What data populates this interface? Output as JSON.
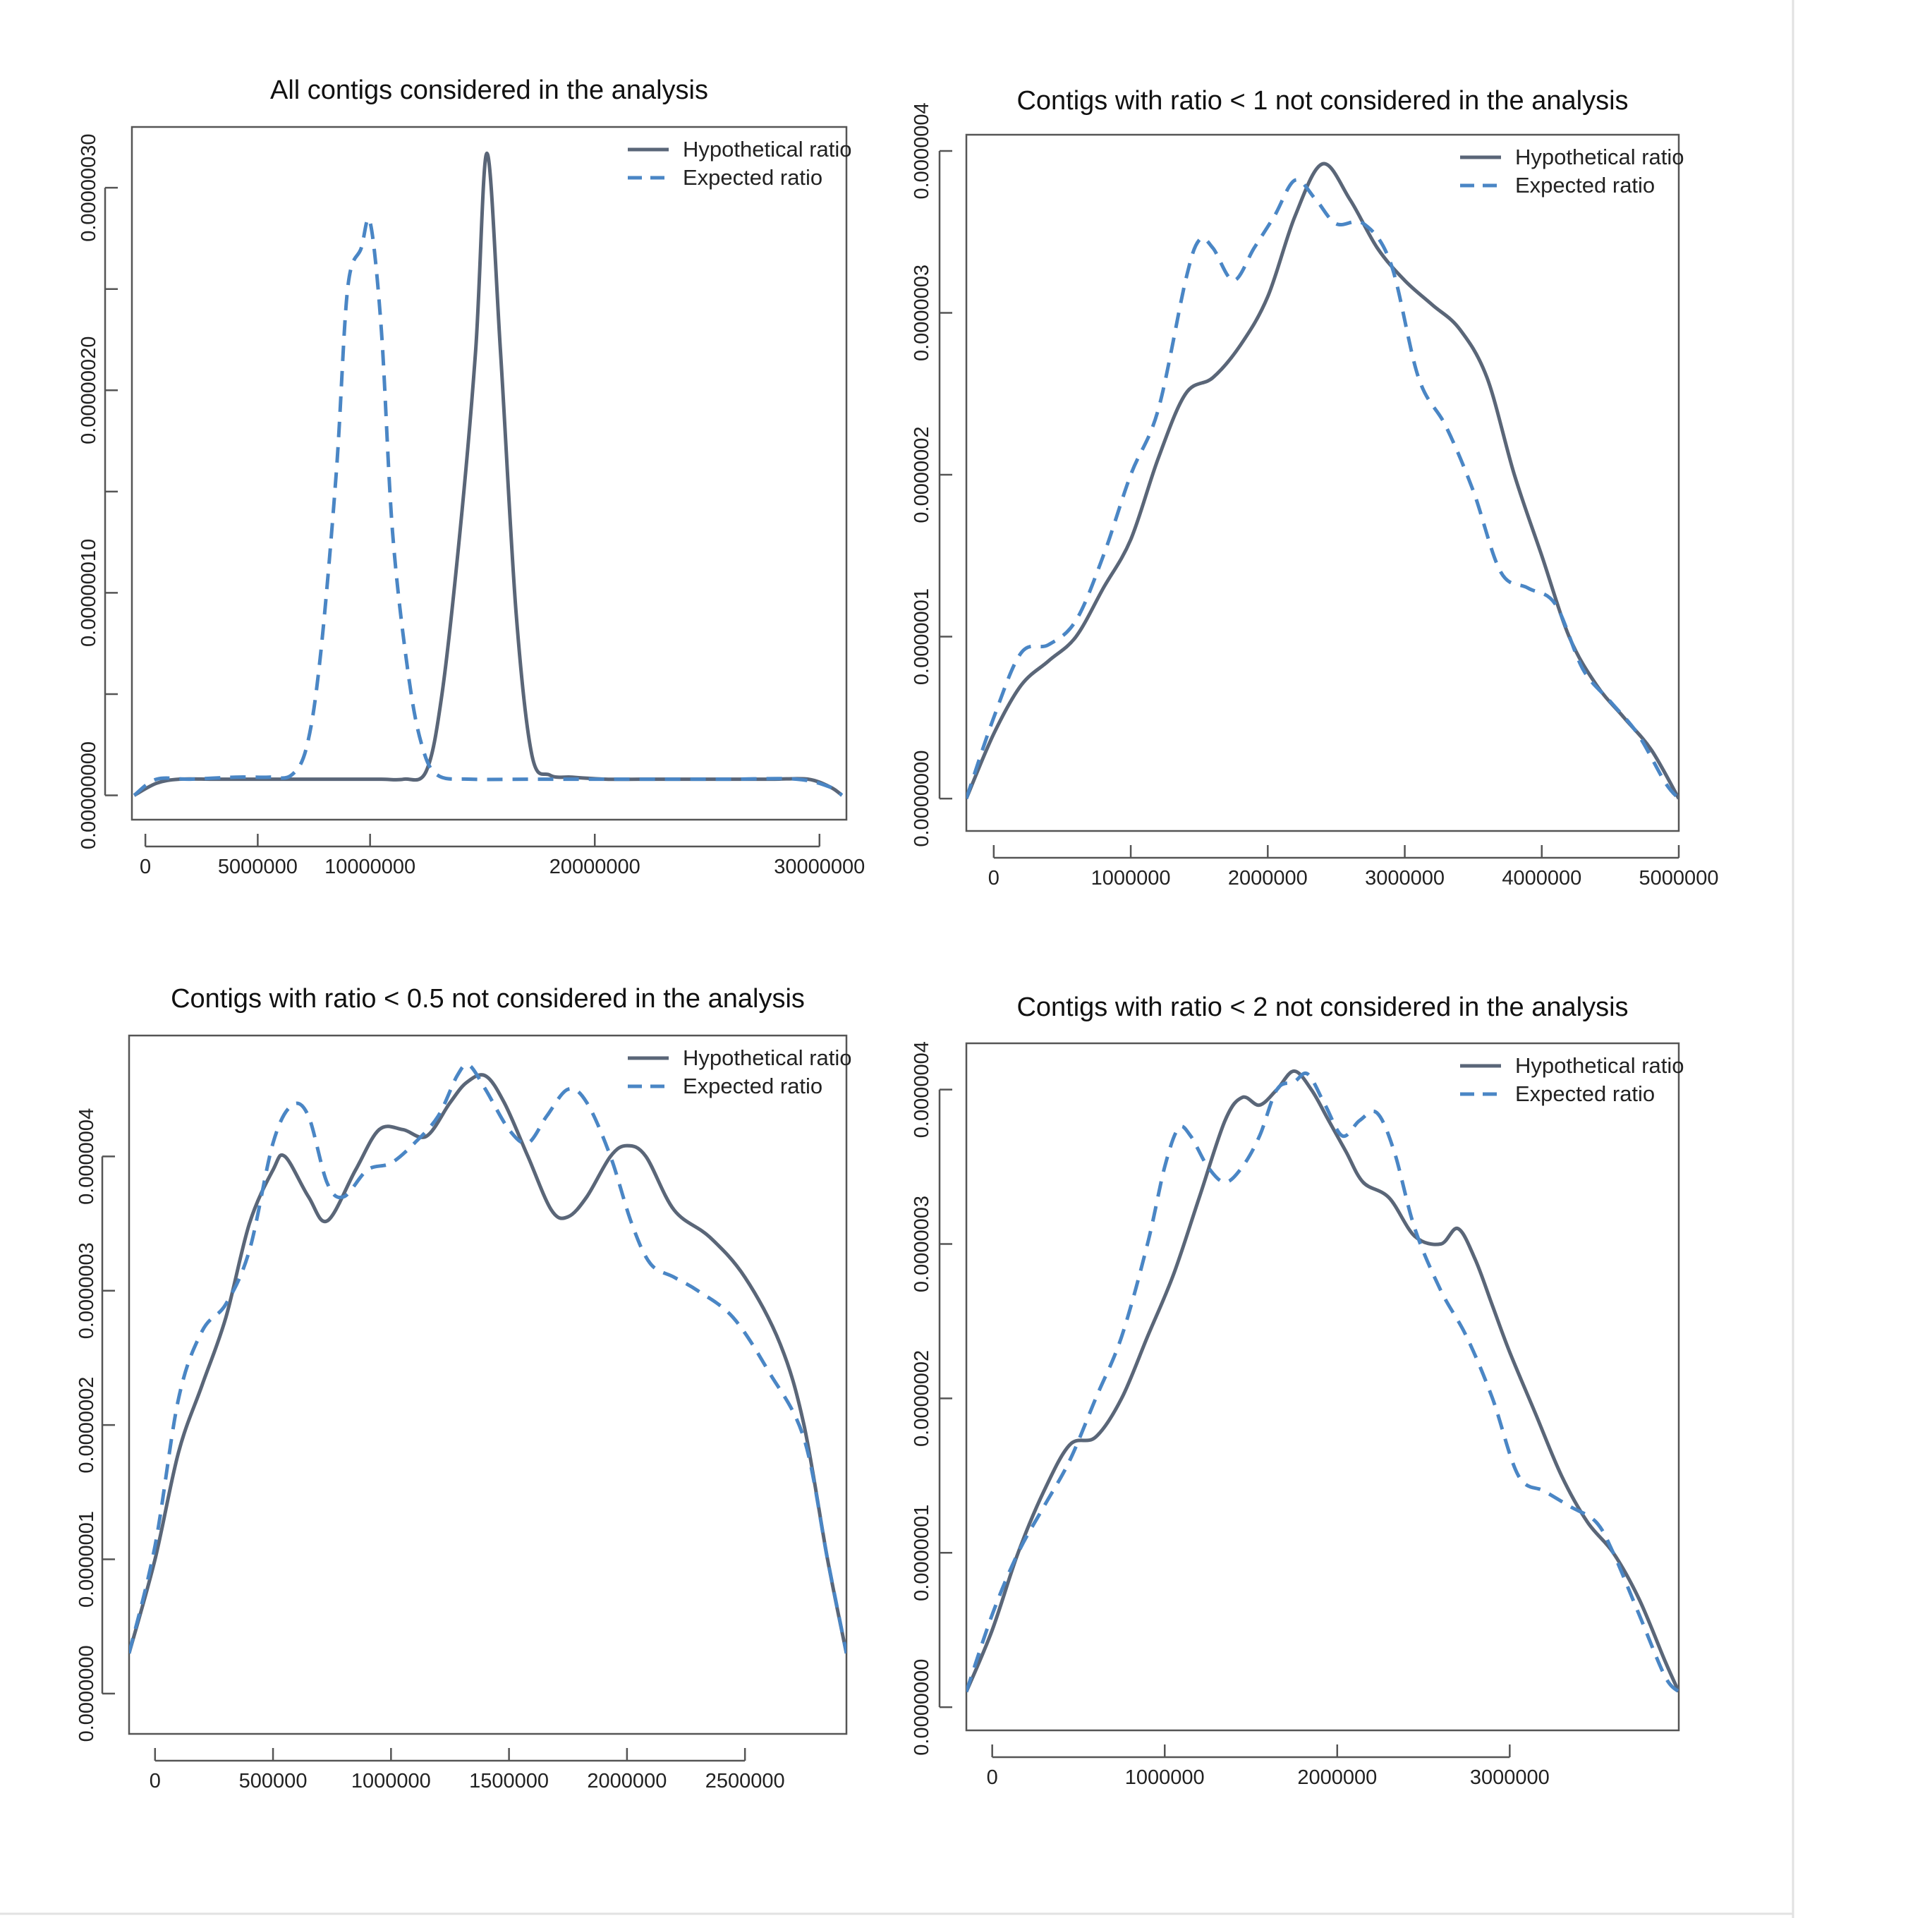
{
  "colors": {
    "hypothetical": "#5a6678",
    "expected": "#4a86c5"
  },
  "chart_data": [
    {
      "type": "line",
      "title": "All contigs considered in the analysis",
      "xlabel": "",
      "ylabel": "",
      "xlim": [
        -600000,
        31200000
      ],
      "ylim": [
        -1.2e-08,
        3.3e-07
      ],
      "x_ticks": [
        0,
        5000000,
        10000000,
        20000000,
        30000000
      ],
      "x_tick_labels": [
        "0",
        "5000000",
        "10000000",
        "20000000",
        "30000000"
      ],
      "y_ticks": [
        0,
        5e-08,
        1e-07,
        1.5e-07,
        2e-07,
        2.5e-07,
        3e-07
      ],
      "y_tick_labels": [
        "0.00000000",
        "",
        "0.00000010",
        "",
        "0.00000020",
        "",
        "0.00000030"
      ],
      "legend": "top-right",
      "series": [
        {
          "name": "Hypothetical ratio",
          "style": "solid",
          "x": [
            -500000,
            500000,
            1500000,
            3000000,
            4500000,
            6000000,
            7500000,
            9000000,
            10500000,
            11500000,
            12500000,
            13200000,
            14000000,
            14700000,
            15200000,
            15800000,
            16500000,
            17200000,
            18000000,
            19000000,
            20500000,
            22000000,
            23500000,
            25000000,
            26500000,
            28000000,
            29500000,
            30500000,
            31000000
          ],
          "y": [
            0.0,
            6e-09,
            8e-09,
            8e-09,
            8e-09,
            8e-09,
            8e-09,
            8e-09,
            8e-09,
            8e-09,
            1.2e-08,
            5e-08,
            1.3e-07,
            2.2e-07,
            3.17e-07,
            2.2e-07,
            9e-08,
            2e-08,
            1e-08,
            9e-09,
            8e-09,
            8e-09,
            8e-09,
            8e-09,
            8e-09,
            8e-09,
            8e-09,
            4e-09,
            0.0
          ]
        },
        {
          "name": "Expected ratio",
          "style": "dashed",
          "x": [
            -500000,
            500000,
            2000000,
            4000000,
            5500000,
            6500000,
            7200000,
            7800000,
            8500000,
            9000000,
            9600000,
            10000000,
            10500000,
            11000000,
            11700000,
            12300000,
            13000000,
            14500000,
            17000000,
            20000000,
            23000000,
            26000000,
            29000000,
            30500000,
            31000000
          ],
          "y": [
            0.0,
            8e-09,
            8e-09,
            9e-09,
            9e-09,
            1e-08,
            2.5e-08,
            7e-08,
            1.6e-07,
            2.5e-07,
            2.7e-07,
            2.83e-07,
            2.3e-07,
            1.3e-07,
            6e-08,
            2.5e-08,
            1e-08,
            8e-09,
            8e-09,
            8e-09,
            8e-09,
            8e-09,
            8e-09,
            4e-09,
            0.0
          ]
        }
      ]
    },
    {
      "type": "line",
      "title": "Contigs with ratio < 1 not considered in the analysis",
      "xlabel": "",
      "ylabel": "",
      "xlim": [
        -200000,
        5000000
      ],
      "ylim": [
        -2e-08,
        4.1e-07
      ],
      "x_ticks": [
        0,
        1000000,
        2000000,
        3000000,
        4000000,
        5000000
      ],
      "x_tick_labels": [
        "0",
        "1000000",
        "2000000",
        "3000000",
        "4000000",
        "5000000"
      ],
      "y_ticks": [
        0,
        1e-07,
        2e-07,
        3e-07,
        4e-07
      ],
      "y_tick_labels": [
        "0.0000000",
        "0.0000001",
        "0.0000002",
        "0.0000003",
        "0.0000004"
      ],
      "legend": "top-right",
      "series": [
        {
          "name": "Hypothetical ratio",
          "style": "solid",
          "x": [
            -200000,
            0,
            200000,
            400000,
            600000,
            800000,
            1000000,
            1200000,
            1400000,
            1600000,
            1800000,
            2000000,
            2200000,
            2400000,
            2600000,
            2800000,
            3000000,
            3200000,
            3400000,
            3600000,
            3800000,
            4000000,
            4200000,
            4400000,
            4600000,
            4800000,
            5000000
          ],
          "y": [
            0.0,
            4e-08,
            7e-08,
            8.5e-08,
            1e-07,
            1.3e-07,
            1.6e-07,
            2.1e-07,
            2.5e-07,
            2.6e-07,
            2.8e-07,
            3.1e-07,
            3.6e-07,
            3.92e-07,
            3.7e-07,
            3.4e-07,
            3.2e-07,
            3.05e-07,
            2.9e-07,
            2.6e-07,
            2e-07,
            1.5e-07,
            1e-07,
            7e-08,
            5e-08,
            3e-08,
            0.0
          ]
        },
        {
          "name": "Expected ratio",
          "style": "dashed",
          "x": [
            -200000,
            0,
            200000,
            400000,
            600000,
            800000,
            1000000,
            1200000,
            1400000,
            1500000,
            1600000,
            1750000,
            1900000,
            2050000,
            2200000,
            2350000,
            2500000,
            2700000,
            2900000,
            3100000,
            3300000,
            3500000,
            3700000,
            3900000,
            4100000,
            4300000,
            4500000,
            4700000,
            4900000,
            5000000
          ],
          "y": [
            0.0,
            5e-08,
            9e-08,
            9.5e-08,
            1.1e-07,
            1.5e-07,
            2e-07,
            2.4e-07,
            3.2e-07,
            3.45e-07,
            3.4e-07,
            3.2e-07,
            3.4e-07,
            3.6e-07,
            3.82e-07,
            3.7e-07,
            3.55e-07,
            3.55e-07,
            3.3e-07,
            2.6e-07,
            2.3e-07,
            1.9e-07,
            1.4e-07,
            1.3e-07,
            1.2e-07,
            8e-08,
            6e-08,
            4e-08,
            1e-08,
            0.0
          ]
        }
      ]
    },
    {
      "type": "line",
      "title": "Contigs with ratio < 0.5 not considered in the analysis",
      "xlabel": "",
      "ylabel": "",
      "xlim": [
        -110000,
        2930000
      ],
      "ylim": [
        -3e-08,
        4.9e-07
      ],
      "x_ticks": [
        0,
        500000,
        1000000,
        1500000,
        2000000,
        2500000
      ],
      "x_tick_labels": [
        "0",
        "500000",
        "1000000",
        "1500000",
        "2000000",
        "2500000"
      ],
      "y_ticks": [
        0,
        1e-07,
        2e-07,
        3e-07,
        4e-07
      ],
      "y_tick_labels": [
        "0.0000000",
        "0.0000001",
        "0.0000002",
        "0.0000003",
        "0.0000004"
      ],
      "legend": "top-right",
      "series": [
        {
          "name": "Hypothetical ratio",
          "style": "solid",
          "x": [
            -110000,
            0,
            100000,
            200000,
            300000,
            400000,
            500000,
            550000,
            650000,
            730000,
            850000,
            950000,
            1050000,
            1150000,
            1250000,
            1320000,
            1400000,
            1480000,
            1580000,
            1680000,
            1750000,
            1830000,
            1930000,
            2000000,
            2080000,
            2200000,
            2350000,
            2500000,
            2650000,
            2750000,
            2850000,
            2930000
          ],
          "y": [
            3e-08,
            1e-07,
            1.8e-07,
            2.3e-07,
            2.8e-07,
            3.5e-07,
            3.9e-07,
            4e-07,
            3.7e-07,
            3.52e-07,
            3.9e-07,
            4.2e-07,
            4.2e-07,
            4.15e-07,
            4.4e-07,
            4.55e-07,
            4.6e-07,
            4.4e-07,
            4e-07,
            3.6e-07,
            3.55e-07,
            3.7e-07,
            4e-07,
            4.08e-07,
            4e-07,
            3.6e-07,
            3.4e-07,
            3.1e-07,
            2.6e-07,
            2e-07,
            1e-07,
            3e-08
          ]
        },
        {
          "name": "Expected ratio",
          "style": "dashed",
          "x": [
            -110000,
            0,
            100000,
            200000,
            300000,
            400000,
            500000,
            580000,
            650000,
            730000,
            800000,
            900000,
            1000000,
            1100000,
            1200000,
            1280000,
            1330000,
            1400000,
            1500000,
            1580000,
            1660000,
            1750000,
            1830000,
            1930000,
            2020000,
            2100000,
            2200000,
            2300000,
            2450000,
            2600000,
            2750000,
            2850000,
            2930000
          ],
          "y": [
            3e-08,
            1.1e-07,
            2.2e-07,
            2.7e-07,
            2.9e-07,
            3.3e-07,
            4.1e-07,
            4.38e-07,
            4.3e-07,
            3.8e-07,
            3.7e-07,
            3.9e-07,
            3.95e-07,
            4.1e-07,
            4.3e-07,
            4.6e-07,
            4.68e-07,
            4.5e-07,
            4.2e-07,
            4.1e-07,
            4.3e-07,
            4.5e-07,
            4.4e-07,
            4e-07,
            3.5e-07,
            3.2e-07,
            3.1e-07,
            3e-07,
            2.8e-07,
            2.4e-07,
            1.9e-07,
            1e-07,
            3e-08
          ]
        }
      ]
    },
    {
      "type": "line",
      "title": "Contigs with ratio < 2 not considered in the analysis",
      "xlabel": "",
      "ylabel": "",
      "xlim": [
        -150000,
        3980000
      ],
      "ylim": [
        -1.5e-08,
        4.3e-07
      ],
      "x_ticks": [
        0,
        1000000,
        2000000,
        3000000
      ],
      "x_tick_labels": [
        "0",
        "1000000",
        "2000000",
        "3000000"
      ],
      "y_ticks": [
        0,
        1e-07,
        2e-07,
        3e-07,
        4e-07
      ],
      "y_tick_labels": [
        "0.0000000",
        "0.0000001",
        "0.0000002",
        "0.0000003",
        "0.0000004"
      ],
      "legend": "top-right",
      "series": [
        {
          "name": "Hypothetical ratio",
          "style": "solid",
          "x": [
            -150000,
            0,
            150000,
            300000,
            450000,
            600000,
            750000,
            900000,
            1050000,
            1200000,
            1350000,
            1450000,
            1550000,
            1650000,
            1750000,
            1850000,
            1950000,
            2050000,
            2150000,
            2300000,
            2450000,
            2600000,
            2700000,
            2800000,
            2900000,
            3000000,
            3150000,
            3300000,
            3450000,
            3600000,
            3750000,
            3900000,
            3980000
          ],
          "y": [
            1e-08,
            5e-08,
            1e-07,
            1.4e-07,
            1.7e-07,
            1.75e-07,
            2e-07,
            2.4e-07,
            2.8e-07,
            3.3e-07,
            3.8e-07,
            3.95e-07,
            3.9e-07,
            4e-07,
            4.12e-07,
            4e-07,
            3.8e-07,
            3.6e-07,
            3.4e-07,
            3.3e-07,
            3.05e-07,
            3e-07,
            3.1e-07,
            2.9e-07,
            2.6e-07,
            2.3e-07,
            1.9e-07,
            1.5e-07,
            1.2e-07,
            1e-07,
            7e-08,
            3e-08,
            1e-08
          ]
        },
        {
          "name": "Expected ratio",
          "style": "dashed",
          "x": [
            -150000,
            0,
            150000,
            300000,
            450000,
            600000,
            750000,
            900000,
            1000000,
            1080000,
            1150000,
            1250000,
            1350000,
            1450000,
            1550000,
            1650000,
            1750000,
            1830000,
            1930000,
            2030000,
            2130000,
            2230000,
            2330000,
            2450000,
            2600000,
            2750000,
            2900000,
            3050000,
            3200000,
            3350000,
            3500000,
            3600000,
            3750000,
            3900000,
            3980000
          ],
          "y": [
            1e-08,
            6e-08,
            1e-07,
            1.3e-07,
            1.6e-07,
            2e-07,
            2.4e-07,
            3e-07,
            3.5e-07,
            3.75e-07,
            3.7e-07,
            3.5e-07,
            3.4e-07,
            3.5e-07,
            3.7e-07,
            4e-07,
            4.05e-07,
            4.1e-07,
            3.9e-07,
            3.7e-07,
            3.8e-07,
            3.85e-07,
            3.6e-07,
            3.1e-07,
            2.7e-07,
            2.4e-07,
            2e-07,
            1.5e-07,
            1.4e-07,
            1.3e-07,
            1.2e-07,
            1e-07,
            6e-08,
            2e-08,
            1e-08
          ]
        }
      ]
    }
  ]
}
